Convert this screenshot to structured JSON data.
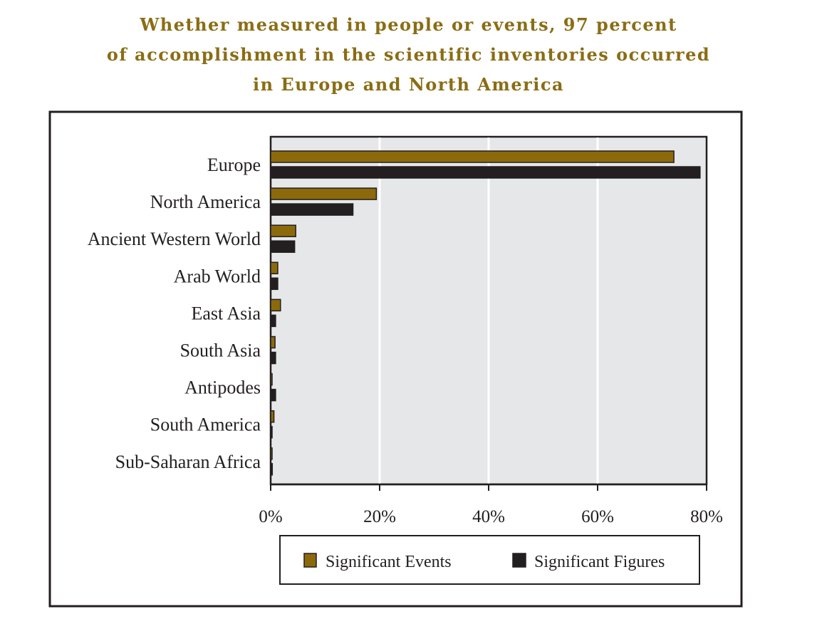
{
  "chart_data": {
    "type": "bar",
    "orientation": "horizontal",
    "title": [
      "Whether measured in people or events, 97 percent",
      "of accomplishment in the scientific inventories occurred",
      "in Europe and North America"
    ],
    "categories": [
      "Europe",
      "North America",
      "Ancient Western World",
      "Arab World",
      "East Asia",
      "South Asia",
      "Antipodes",
      "South America",
      "Sub-Saharan Africa"
    ],
    "series": [
      {
        "name": "Significant Events",
        "color": "#8c6a0c",
        "values": [
          74,
          19.4,
          4.6,
          1.3,
          1.8,
          0.8,
          0.2,
          0.6,
          0.1
        ]
      },
      {
        "name": "Significant Figures",
        "color": "#231f20",
        "values": [
          78.8,
          15.1,
          4.4,
          1.3,
          0.9,
          0.9,
          0.9,
          0.1,
          0.3
        ]
      }
    ],
    "xlim": [
      0,
      80
    ],
    "xticks": [
      0,
      20,
      40,
      60,
      80
    ],
    "xtick_labels": [
      "0%",
      "20%",
      "40%",
      "60%",
      "80%"
    ],
    "grid": "vertical",
    "plot_background": "#e6e7e8",
    "xlabel": "",
    "ylabel": "",
    "legend_position": "bottom"
  }
}
